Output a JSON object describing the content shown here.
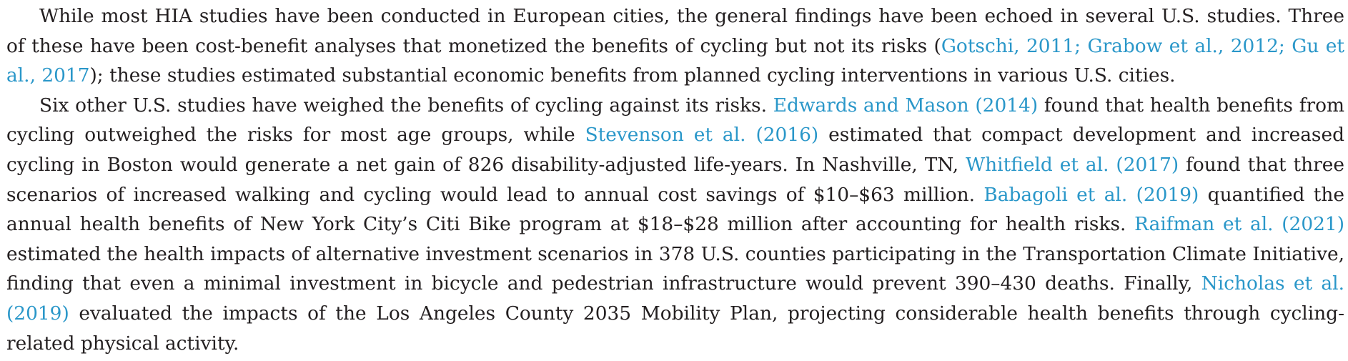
{
  "link_color": "#2a97c9",
  "text_color": "#231f20",
  "paragraphs": [
    {
      "segments": [
        {
          "t": "While most HIA studies have been conducted in European cities, the general findings have been echoed in several U.S. studies. Three of these have been cost-benefit analyses that monetized the benefits of cycling but not its risks ("
        },
        {
          "t": "Gotschi, 2011; Grabow et al., 2012; Gu et al., 2017",
          "link": true,
          "name": "citation-gotschi-grabow-gu"
        },
        {
          "t": "); these studies estimated substantial economic benefits from planned cycling interventions in various U.S. cities."
        }
      ]
    },
    {
      "segments": [
        {
          "t": "Six other U.S. studies have weighed the benefits of cycling against its risks. "
        },
        {
          "t": "Edwards and Mason (2014)",
          "link": true,
          "name": "citation-edwards-mason-2014"
        },
        {
          "t": " found that health benefits from cycling outweighed the risks for most age groups, while "
        },
        {
          "t": "Stevenson et al. (2016)",
          "link": true,
          "name": "citation-stevenson-2016"
        },
        {
          "t": " estimated that compact development and increased cycling in Boston would generate a net gain of 826 disability-adjusted life-years. In Nashville, TN, "
        },
        {
          "t": "Whitfield et al. (2017)",
          "link": true,
          "name": "citation-whitfield-2017"
        },
        {
          "t": " found that three scenarios of increased walking and cycling would lead to annual cost savings of $10–$63 million. "
        },
        {
          "t": "Babagoli et al. (2019)",
          "link": true,
          "name": "citation-babagoli-2019"
        },
        {
          "t": " quantified the annual health benefits of New York City’s Citi Bike program at $18–$28 million after accounting for health risks. "
        },
        {
          "t": "Raifman et al. (2021)",
          "link": true,
          "name": "citation-raifman-2021"
        },
        {
          "t": " estimated the health impacts of alternative investment scenarios in 378 U.S. counties participating in the Transportation Climate Initiative, finding that even a minimal investment in bicycle and pedestrian infrastructure would prevent 390–430 deaths. Finally, "
        },
        {
          "t": "Nicholas et al. (2019)",
          "link": true,
          "name": "citation-nicholas-2019"
        },
        {
          "t": " evaluated the impacts of the Los Angeles County 2035 Mobility Plan, projecting considerable health benefits through cycling-related physical activity."
        }
      ]
    }
  ]
}
